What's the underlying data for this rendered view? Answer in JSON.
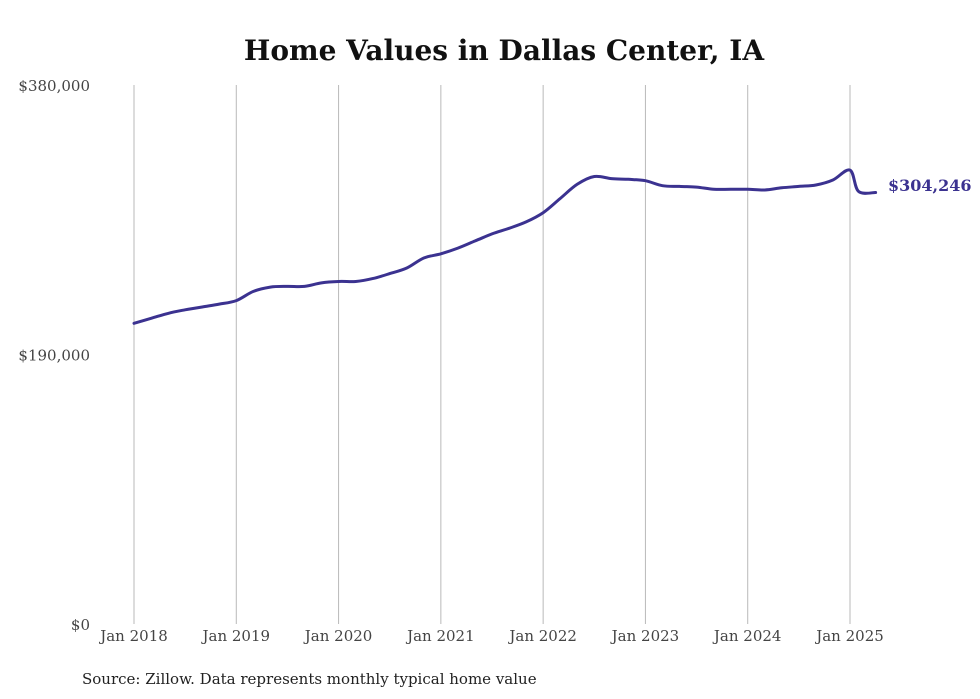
{
  "chart_data": {
    "type": "line",
    "title": "Home Values in Dallas Center, IA",
    "xlabel": "",
    "ylabel": "",
    "ylim": [
      0,
      380000
    ],
    "y_ticks": [
      {
        "value": 0,
        "label": "$0"
      },
      {
        "value": 190000,
        "label": "$190,000"
      },
      {
        "value": 380000,
        "label": "$380,000"
      }
    ],
    "x_ticks": [
      {
        "value": 2018.0,
        "label": "Jan 2018"
      },
      {
        "value": 2019.0,
        "label": "Jan 2019"
      },
      {
        "value": 2020.0,
        "label": "Jan 2020"
      },
      {
        "value": 2021.0,
        "label": "Jan 2021"
      },
      {
        "value": 2022.0,
        "label": "Jan 2022"
      },
      {
        "value": 2023.0,
        "label": "Jan 2023"
      },
      {
        "value": 2024.0,
        "label": "Jan 2024"
      },
      {
        "value": 2025.0,
        "label": "Jan 2025"
      }
    ],
    "grid": {
      "vertical": true,
      "horizontal": false
    },
    "series": [
      {
        "color": "#3b3290",
        "points": [
          [
            2018.0,
            212000
          ],
          [
            2018.167,
            215500
          ],
          [
            2018.333,
            219000
          ],
          [
            2018.5,
            221500
          ],
          [
            2018.667,
            223500
          ],
          [
            2018.833,
            225500
          ],
          [
            2019.0,
            228000
          ],
          [
            2019.167,
            234500
          ],
          [
            2019.333,
            237500
          ],
          [
            2019.5,
            238000
          ],
          [
            2019.667,
            238000
          ],
          [
            2019.833,
            240500
          ],
          [
            2020.0,
            241500
          ],
          [
            2020.167,
            241500
          ],
          [
            2020.333,
            243500
          ],
          [
            2020.5,
            247000
          ],
          [
            2020.667,
            251000
          ],
          [
            2020.833,
            258000
          ],
          [
            2021.0,
            261000
          ],
          [
            2021.167,
            265000
          ],
          [
            2021.333,
            270000
          ],
          [
            2021.5,
            275000
          ],
          [
            2021.667,
            279000
          ],
          [
            2021.833,
            283500
          ],
          [
            2022.0,
            290000
          ],
          [
            2022.167,
            300000
          ],
          [
            2022.333,
            310000
          ],
          [
            2022.5,
            315500
          ],
          [
            2022.667,
            314000
          ],
          [
            2022.833,
            313500
          ],
          [
            2023.0,
            312500
          ],
          [
            2023.167,
            309000
          ],
          [
            2023.333,
            308500
          ],
          [
            2023.5,
            308000
          ],
          [
            2023.667,
            306500
          ],
          [
            2023.833,
            306500
          ],
          [
            2024.0,
            306500
          ],
          [
            2024.167,
            306000
          ],
          [
            2024.333,
            307500
          ],
          [
            2024.5,
            308500
          ],
          [
            2024.667,
            309500
          ],
          [
            2024.833,
            313000
          ],
          [
            2025.0,
            320000
          ],
          [
            2025.083,
            305000
          ],
          [
            2025.25,
            304246
          ]
        ]
      }
    ],
    "end_label": "$304,246"
  },
  "source_note": "Source: Zillow. Data represents monthly typical home value"
}
